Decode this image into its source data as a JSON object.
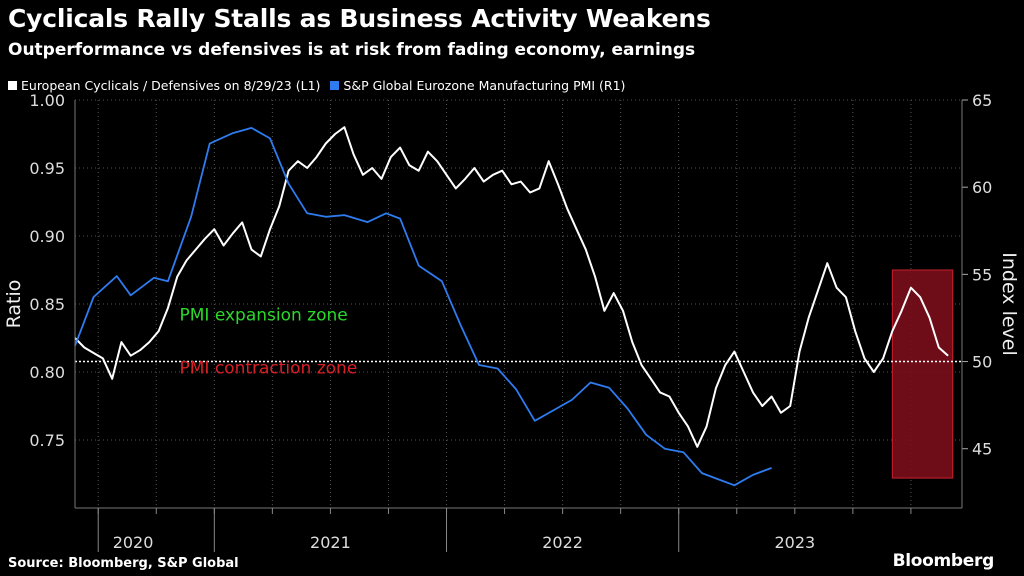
{
  "title": "Cyclicals Rally Stalls as Business Activity Weakens",
  "subtitle": "Outperformance vs defensives is at risk from fading economy, earnings",
  "source": "Source: Bloomberg, S&P Global",
  "brand": "Bloomberg",
  "colors": {
    "background": "#000000",
    "ratio_line": "#ffffff",
    "pmi_line": "#2e7cf0",
    "expansion_text": "#2bd92b",
    "contraction_text": "#d81f26",
    "highlight_fill": "#7a0e1a",
    "highlight_stroke": "#c8202e"
  },
  "chart_data": {
    "type": "line",
    "legend": [
      "European Cyclicals / Defensives on 8/29/23 (L1)",
      "S&P Global Eurozone Manufacturing PMI (R1)"
    ],
    "y_left": {
      "label": "Ratio",
      "range": [
        0.7,
        1.0
      ],
      "ticks": [
        "0.75",
        "0.80",
        "0.85",
        "0.90",
        "0.95",
        "1.00"
      ]
    },
    "y_right": {
      "label": "Index level",
      "range": [
        41.6,
        65
      ],
      "ticks": [
        "45",
        "50",
        "55",
        "60",
        "65"
      ]
    },
    "x_range": [
      2019.9,
      2023.72
    ],
    "x_labels": [
      {
        "text": "2020",
        "x": 2020.15
      },
      {
        "text": "2021",
        "x": 2021.0
      },
      {
        "text": "2022",
        "x": 2022.0
      },
      {
        "text": "2023",
        "x": 2023.0
      }
    ],
    "x_major_ticks": [
      2020.0,
      2020.5,
      2021.5,
      2022.5
    ],
    "annotations": [
      {
        "text": "PMI expansion zone",
        "x": 2020.35,
        "y": 0.838
      },
      {
        "text": "PMI contraction zone",
        "x": 2020.35,
        "y": 0.799
      }
    ],
    "pmi_threshold": 50,
    "highlight": {
      "x": [
        2023.42,
        2023.68
      ],
      "y_ratio": [
        0.722,
        0.875
      ]
    },
    "series": [
      {
        "name": "European Cyclicals / Defensives on 8/29/23 (L1)",
        "axis": "left",
        "points": [
          [
            2019.9,
            0.825
          ],
          [
            2019.94,
            0.818
          ],
          [
            2019.98,
            0.814
          ],
          [
            2020.02,
            0.81
          ],
          [
            2020.06,
            0.795
          ],
          [
            2020.1,
            0.822
          ],
          [
            2020.14,
            0.812
          ],
          [
            2020.18,
            0.816
          ],
          [
            2020.22,
            0.822
          ],
          [
            2020.26,
            0.83
          ],
          [
            2020.3,
            0.847
          ],
          [
            2020.34,
            0.87
          ],
          [
            2020.38,
            0.882
          ],
          [
            2020.42,
            0.89
          ],
          [
            2020.46,
            0.898
          ],
          [
            2020.5,
            0.905
          ],
          [
            2020.54,
            0.893
          ],
          [
            2020.58,
            0.902
          ],
          [
            2020.62,
            0.91
          ],
          [
            2020.66,
            0.89
          ],
          [
            2020.7,
            0.885
          ],
          [
            2020.74,
            0.905
          ],
          [
            2020.78,
            0.922
          ],
          [
            2020.82,
            0.948
          ],
          [
            2020.86,
            0.955
          ],
          [
            2020.9,
            0.95
          ],
          [
            2020.94,
            0.958
          ],
          [
            2020.98,
            0.968
          ],
          [
            2021.02,
            0.975
          ],
          [
            2021.06,
            0.98
          ],
          [
            2021.1,
            0.96
          ],
          [
            2021.14,
            0.945
          ],
          [
            2021.18,
            0.95
          ],
          [
            2021.22,
            0.942
          ],
          [
            2021.26,
            0.958
          ],
          [
            2021.3,
            0.965
          ],
          [
            2021.34,
            0.952
          ],
          [
            2021.38,
            0.948
          ],
          [
            2021.42,
            0.962
          ],
          [
            2021.46,
            0.955
          ],
          [
            2021.5,
            0.945
          ],
          [
            2021.54,
            0.935
          ],
          [
            2021.58,
            0.942
          ],
          [
            2021.62,
            0.95
          ],
          [
            2021.66,
            0.94
          ],
          [
            2021.7,
            0.945
          ],
          [
            2021.74,
            0.948
          ],
          [
            2021.78,
            0.938
          ],
          [
            2021.82,
            0.94
          ],
          [
            2021.86,
            0.932
          ],
          [
            2021.9,
            0.935
          ],
          [
            2021.94,
            0.955
          ],
          [
            2021.98,
            0.938
          ],
          [
            2022.02,
            0.92
          ],
          [
            2022.06,
            0.905
          ],
          [
            2022.1,
            0.89
          ],
          [
            2022.14,
            0.87
          ],
          [
            2022.18,
            0.845
          ],
          [
            2022.22,
            0.858
          ],
          [
            2022.26,
            0.845
          ],
          [
            2022.3,
            0.822
          ],
          [
            2022.34,
            0.805
          ],
          [
            2022.38,
            0.795
          ],
          [
            2022.42,
            0.785
          ],
          [
            2022.46,
            0.782
          ],
          [
            2022.5,
            0.77
          ],
          [
            2022.54,
            0.76
          ],
          [
            2022.58,
            0.745
          ],
          [
            2022.62,
            0.76
          ],
          [
            2022.66,
            0.788
          ],
          [
            2022.7,
            0.805
          ],
          [
            2022.74,
            0.815
          ],
          [
            2022.78,
            0.8
          ],
          [
            2022.82,
            0.785
          ],
          [
            2022.86,
            0.775
          ],
          [
            2022.9,
            0.782
          ],
          [
            2022.94,
            0.77
          ],
          [
            2022.98,
            0.775
          ],
          [
            2023.02,
            0.815
          ],
          [
            2023.06,
            0.84
          ],
          [
            2023.1,
            0.86
          ],
          [
            2023.14,
            0.88
          ],
          [
            2023.18,
            0.862
          ],
          [
            2023.22,
            0.855
          ],
          [
            2023.26,
            0.83
          ],
          [
            2023.3,
            0.81
          ],
          [
            2023.34,
            0.8
          ],
          [
            2023.38,
            0.81
          ],
          [
            2023.42,
            0.83
          ],
          [
            2023.46,
            0.845
          ],
          [
            2023.5,
            0.862
          ],
          [
            2023.54,
            0.855
          ],
          [
            2023.58,
            0.84
          ],
          [
            2023.62,
            0.818
          ],
          [
            2023.66,
            0.812
          ]
        ]
      },
      {
        "name": "S&P Global Eurozone Manufacturing PMI (R1)",
        "axis": "right",
        "points": [
          [
            2019.9,
            50.9
          ],
          [
            2019.98,
            53.7
          ],
          [
            2020.08,
            54.9
          ],
          [
            2020.14,
            53.8
          ],
          [
            2020.24,
            54.8
          ],
          [
            2020.3,
            54.6
          ],
          [
            2020.4,
            58.3
          ],
          [
            2020.48,
            62.5
          ],
          [
            2020.58,
            63.1
          ],
          [
            2020.66,
            63.4
          ],
          [
            2020.74,
            62.8
          ],
          [
            2020.82,
            60.2
          ],
          [
            2020.9,
            58.5
          ],
          [
            2020.98,
            58.3
          ],
          [
            2021.06,
            58.4
          ],
          [
            2021.16,
            58.0
          ],
          [
            2021.24,
            58.5
          ],
          [
            2021.3,
            58.2
          ],
          [
            2021.38,
            55.5
          ],
          [
            2021.48,
            54.6
          ],
          [
            2021.56,
            52.1
          ],
          [
            2021.64,
            49.8
          ],
          [
            2021.72,
            49.6
          ],
          [
            2021.8,
            48.4
          ],
          [
            2021.88,
            46.6
          ],
          [
            2021.96,
            47.2
          ],
          [
            2022.04,
            47.8
          ],
          [
            2022.12,
            48.8
          ],
          [
            2022.2,
            48.5
          ],
          [
            2022.28,
            47.3
          ],
          [
            2022.36,
            45.8
          ],
          [
            2022.44,
            45.0
          ],
          [
            2022.52,
            44.8
          ],
          [
            2022.6,
            43.6
          ],
          [
            2022.68,
            43.2
          ],
          [
            2022.74,
            42.9
          ],
          [
            2022.82,
            43.5
          ],
          [
            2022.9,
            43.9
          ]
        ]
      }
    ]
  }
}
